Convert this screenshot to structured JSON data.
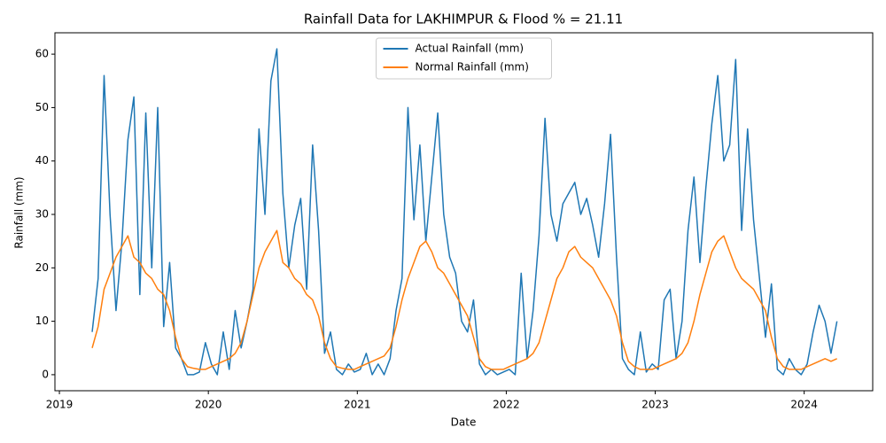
{
  "chart_data": {
    "type": "line",
    "title": "Rainfall Data for LAKHIMPUR & Flood % = 21.11",
    "x_label": "Date",
    "y_label": "Rainfall (mm)",
    "x": [
      2019.22,
      2019.26,
      2019.3,
      2019.34,
      2019.38,
      2019.42,
      2019.46,
      2019.5,
      2019.54,
      2019.58,
      2019.62,
      2019.66,
      2019.7,
      2019.74,
      2019.78,
      2019.82,
      2019.86,
      2019.9,
      2019.94,
      2019.98,
      2020.02,
      2020.06,
      2020.1,
      2020.14,
      2020.18,
      2020.22,
      2020.26,
      2020.3,
      2020.34,
      2020.38,
      2020.42,
      2020.46,
      2020.5,
      2020.54,
      2020.58,
      2020.62,
      2020.66,
      2020.7,
      2020.74,
      2020.78,
      2020.82,
      2020.86,
      2020.9,
      2020.94,
      2020.98,
      2021.02,
      2021.06,
      2021.1,
      2021.14,
      2021.18,
      2021.22,
      2021.26,
      2021.3,
      2021.34,
      2021.38,
      2021.42,
      2021.46,
      2021.5,
      2021.54,
      2021.58,
      2021.62,
      2021.66,
      2021.7,
      2021.74,
      2021.78,
      2021.82,
      2021.86,
      2021.9,
      2021.94,
      2021.98,
      2022.02,
      2022.06,
      2022.1,
      2022.14,
      2022.18,
      2022.22,
      2022.26,
      2022.3,
      2022.34,
      2022.38,
      2022.42,
      2022.46,
      2022.5,
      2022.54,
      2022.58,
      2022.62,
      2022.66,
      2022.7,
      2022.74,
      2022.78,
      2022.82,
      2022.86,
      2022.9,
      2022.94,
      2022.98,
      2023.02,
      2023.06,
      2023.1,
      2023.14,
      2023.18,
      2023.22,
      2023.26,
      2023.3,
      2023.34,
      2023.38,
      2023.42,
      2023.46,
      2023.5,
      2023.54,
      2023.58,
      2023.62,
      2023.66,
      2023.7,
      2023.74,
      2023.78,
      2023.82,
      2023.86,
      2023.9,
      2023.94,
      2023.98,
      2024.02,
      2024.06,
      2024.1,
      2024.14,
      2024.18,
      2024.22
    ],
    "series": [
      {
        "name": "Actual Rainfall (mm)",
        "color": "#1f77b4",
        "values": [
          8,
          18,
          56,
          30,
          12,
          25,
          44,
          52,
          15,
          49,
          20,
          50,
          9,
          21,
          5,
          3,
          0,
          0,
          0.5,
          6,
          2,
          0,
          8,
          1,
          12,
          5,
          10,
          16,
          46,
          30,
          55,
          61,
          34,
          20,
          28,
          33,
          16,
          43,
          27,
          4,
          8,
          1,
          0,
          2,
          0.5,
          1,
          4,
          0,
          2,
          0,
          3,
          12,
          18,
          50,
          29,
          43,
          25,
          37,
          49,
          30,
          22,
          19,
          10,
          8,
          14,
          2,
          0,
          1,
          0,
          0.5,
          1,
          0,
          19,
          3,
          12,
          26,
          48,
          30,
          25,
          32,
          34,
          36,
          30,
          33,
          28,
          22,
          32,
          45,
          22,
          3,
          1,
          0,
          8,
          0.5,
          2,
          1,
          14,
          16,
          3,
          10,
          27,
          37,
          21,
          35,
          47,
          56,
          40,
          43,
          59,
          27,
          46,
          29,
          18,
          7,
          17,
          1,
          0,
          3,
          1,
          0,
          2,
          8,
          13,
          10,
          4,
          10
        ]
      },
      {
        "name": "Normal Rainfall (mm)",
        "color": "#ff7f0e",
        "values": [
          5,
          9,
          16,
          19,
          22,
          24,
          26,
          22,
          21,
          19,
          18,
          16,
          15,
          12,
          7,
          3,
          1.5,
          1.2,
          1,
          1,
          1.5,
          2,
          2.5,
          3,
          4,
          6,
          10,
          15,
          20,
          23,
          25,
          27,
          21,
          20,
          18,
          17,
          15,
          14,
          11,
          6,
          3,
          1.5,
          1.2,
          1,
          1,
          1.5,
          2,
          2.5,
          3,
          3.5,
          5,
          9,
          14,
          18,
          21,
          24,
          25,
          23,
          20,
          19,
          17,
          15,
          13,
          11,
          7,
          3,
          1.5,
          1,
          1,
          1,
          1.5,
          2,
          2.5,
          3,
          4,
          6,
          10,
          14,
          18,
          20,
          23,
          24,
          22,
          21,
          20,
          18,
          16,
          14,
          11,
          6,
          2.5,
          1.5,
          1,
          1,
          1,
          1.5,
          2,
          2.5,
          3,
          4,
          6,
          10,
          15,
          19,
          23,
          25,
          26,
          23,
          20,
          18,
          17,
          16,
          14,
          12,
          7,
          3,
          1.5,
          1,
          1,
          1,
          1.5,
          2,
          2.5,
          3,
          2.5,
          3
        ]
      }
    ],
    "xlim": [
      2018.97,
      2024.46
    ],
    "xticks": [
      2019,
      2020,
      2021,
      2022,
      2023,
      2024
    ],
    "ylim": [
      -3,
      64
    ],
    "yticks": [
      0,
      10,
      20,
      30,
      40,
      50,
      60
    ],
    "grid": false,
    "legend": "upper center"
  }
}
